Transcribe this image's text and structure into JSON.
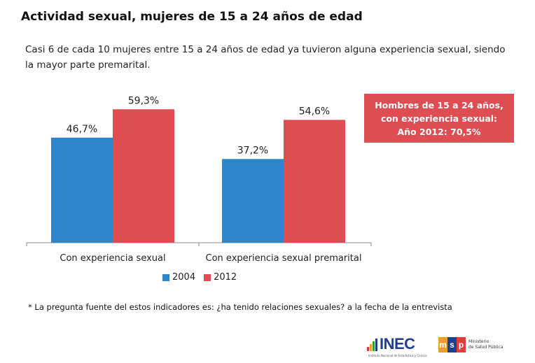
{
  "header": {
    "title": "Actividad sexual, mujeres de 15 a 24 años de edad",
    "subtitle": "Casi 6 de cada 10 mujeres entre 15 a 24 años de edad ya tuvieron alguna experiencia sexual, siendo la mayor parte premarital."
  },
  "callout": {
    "line1": "Hombres de 15 a 24 años,",
    "line2": "con experiencia sexual:",
    "line3": "Año 2012: 70,5%"
  },
  "chart_data": {
    "type": "bar",
    "categories": [
      "Con experiencia sexual",
      "Con experiencia sexual premarital"
    ],
    "series": [
      {
        "name": "2004",
        "values": [
          46.7,
          37.2
        ],
        "labels": [
          "46,7%",
          "37,2%"
        ],
        "color": "#2e86c8"
      },
      {
        "name": "2012",
        "values": [
          59.3,
          54.6
        ],
        "labels": [
          "59,3%",
          "54,6%"
        ],
        "color": "#dd4d52"
      }
    ],
    "ylim": [
      0,
      70
    ],
    "grid": false,
    "legend_position": "bottom"
  },
  "footnote": "* La pregunta  fuente del estos indicadores es: ¿ha tenido relaciones sexuales? a la fecha de la entrevista",
  "logos": {
    "inec": "INEC",
    "inec_sub": "Instituto Nacional de Estadística y Censos",
    "msp": "MSP",
    "msp_line1": "Ministerio",
    "msp_line2": "de Salud Pública"
  }
}
